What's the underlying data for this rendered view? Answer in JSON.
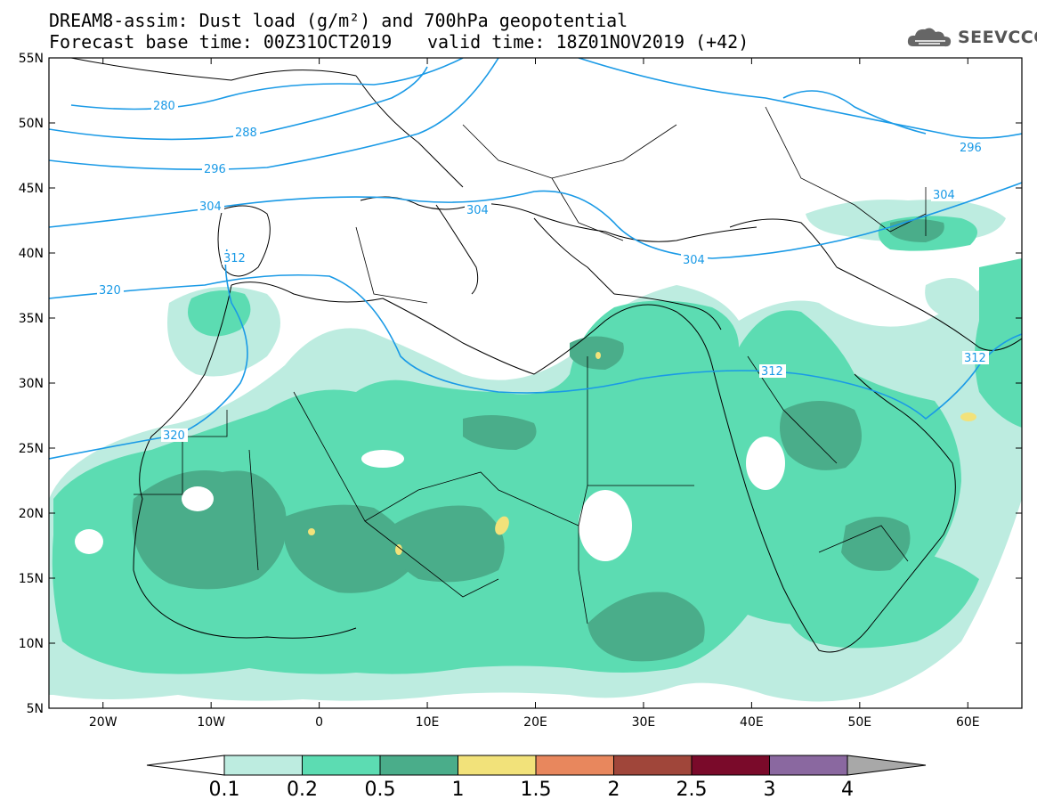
{
  "title": {
    "line1": "DREAM8-assim: Dust load (g/m²) and 700hPa geopotential",
    "base_time": "Forecast base time: 00Z31OCT2019",
    "valid_time": "valid time: 18Z01NOV2019 (+42)"
  },
  "logo": {
    "text": "SEEVCCC",
    "icon": "cloud-icon"
  },
  "map": {
    "lon_range": [
      -25,
      65
    ],
    "lat_range": [
      5,
      55
    ],
    "lat_ticks": [
      "55N",
      "50N",
      "45N",
      "40N",
      "35N",
      "30N",
      "25N",
      "20N",
      "15N",
      "10N",
      "5N"
    ],
    "lon_ticks": [
      "20W",
      "10W",
      "0",
      "10E",
      "20E",
      "30E",
      "40E",
      "50E",
      "60E"
    ],
    "contour_labels": [
      "280",
      "288",
      "296",
      "304",
      "312",
      "320",
      "296",
      "304",
      "304",
      "312",
      "304",
      "320",
      "312"
    ],
    "dust_colors": {
      "c01": "#bdece0",
      "c02": "#5cdcb2",
      "c05": "#4aad8a",
      "c1": "#f2e27a"
    },
    "contour_color": "#1a9ae6"
  },
  "colorbar": {
    "labels": [
      "0.1",
      "0.2",
      "0.5",
      "1",
      "1.5",
      "2",
      "2.5",
      "3",
      "4"
    ],
    "colors": [
      "#bdece0",
      "#5cdcb2",
      "#4aad8a",
      "#f2e27a",
      "#e8875d",
      "#a0463a",
      "#7a0a2a",
      "#8a68a0"
    ],
    "under_color": "#ffffff",
    "over_color": "#a8a8a8"
  }
}
